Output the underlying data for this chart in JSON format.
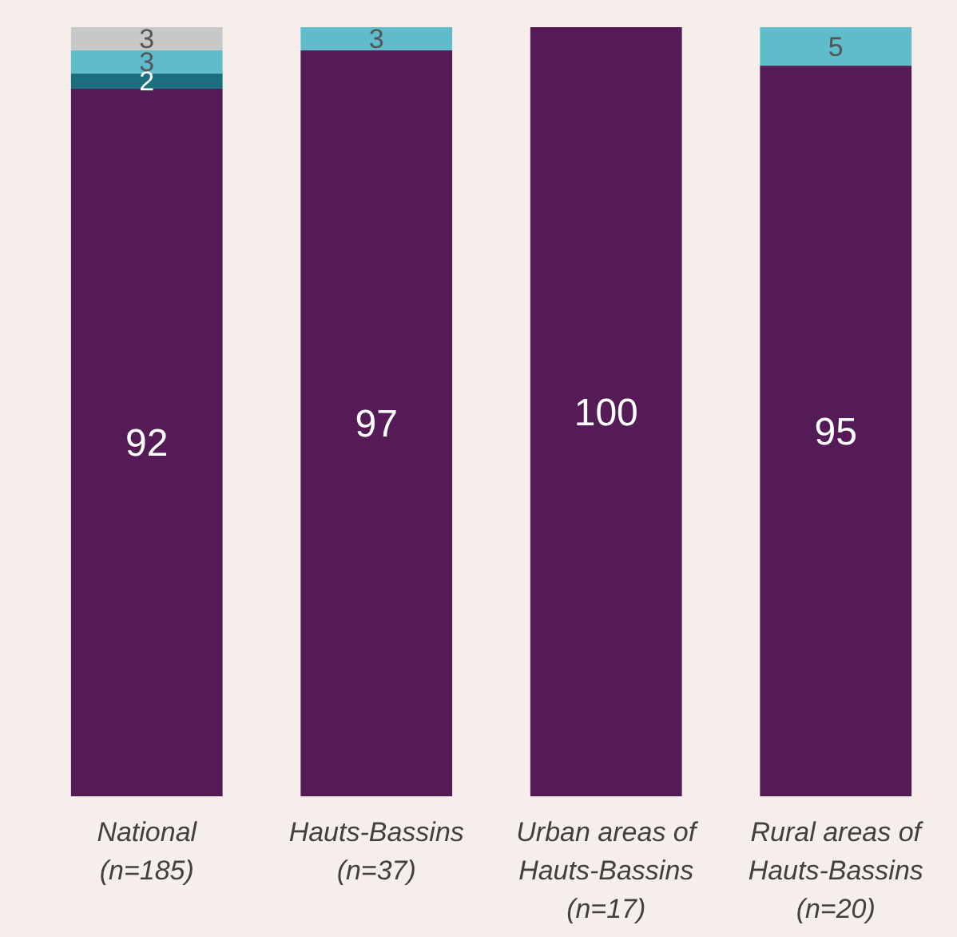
{
  "chart_data": {
    "type": "bar",
    "stacked": true,
    "data_labels": true,
    "categories": [
      "National (n=185)",
      "Hauts-Bassins (n=37)",
      "Urban areas of Hauts-Bassins (n=17)",
      "Rural areas of Hauts-Bassins (n=20)"
    ],
    "series": [
      {
        "color": "#541b56",
        "values": [
          92,
          97,
          100,
          95
        ]
      },
      {
        "color": "#1a6e7e",
        "values": [
          2,
          null,
          null,
          null
        ]
      },
      {
        "color": "#5ebccb",
        "values": [
          3,
          3,
          null,
          5
        ]
      },
      {
        "color": "#c8c8c8",
        "values": [
          3,
          null,
          null,
          null
        ]
      }
    ]
  }
}
